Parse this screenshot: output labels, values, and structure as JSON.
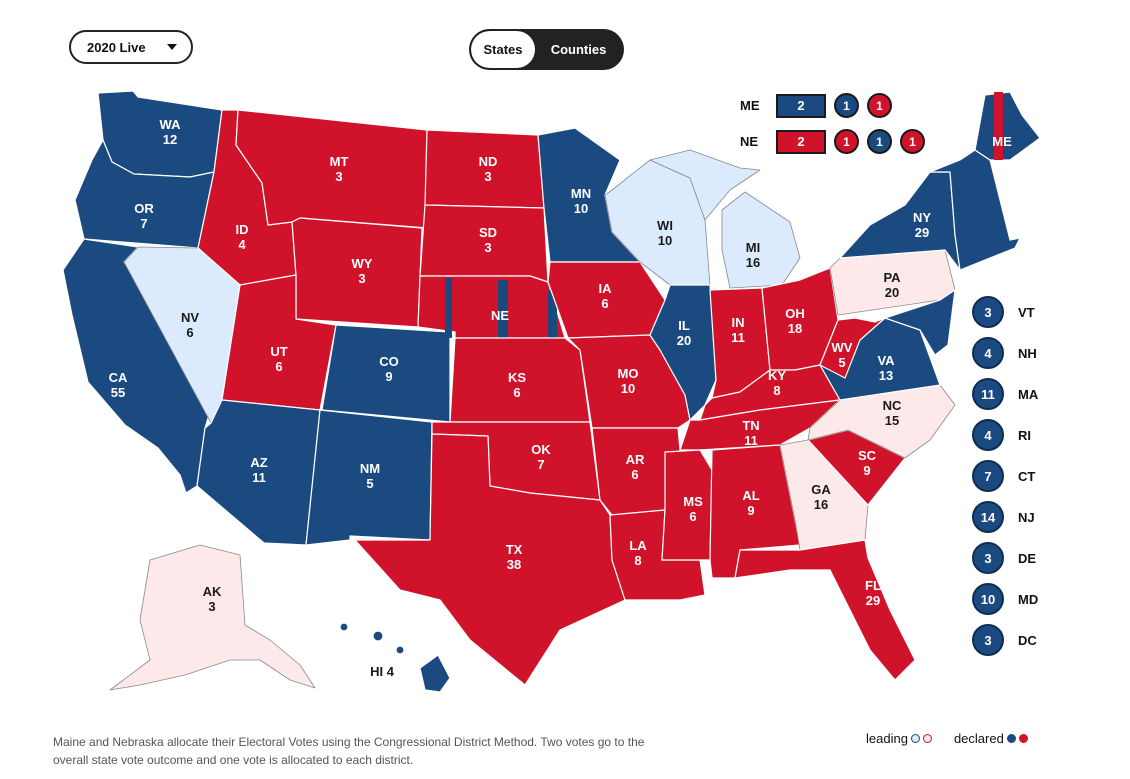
{
  "controls": {
    "year_select": "2020 Live",
    "view_toggle": [
      "States",
      "Counties"
    ]
  },
  "colors": {
    "dem_declared": "#1b4a80",
    "rep_declared": "#d0122a",
    "dem_leading": "#dbeafc",
    "rep_leading": "#fde9ea",
    "border": "#ffffff"
  },
  "states": [
    {
      "abbr": "WA",
      "votes": "12",
      "status": "dem"
    },
    {
      "abbr": "OR",
      "votes": "7",
      "status": "dem"
    },
    {
      "abbr": "CA",
      "votes": "55",
      "status": "dem"
    },
    {
      "abbr": "NV",
      "votes": "6",
      "status": "dem-leading"
    },
    {
      "abbr": "ID",
      "votes": "4",
      "status": "rep"
    },
    {
      "abbr": "MT",
      "votes": "3",
      "status": "rep"
    },
    {
      "abbr": "WY",
      "votes": "3",
      "status": "rep"
    },
    {
      "abbr": "UT",
      "votes": "6",
      "status": "rep"
    },
    {
      "abbr": "AZ",
      "votes": "11",
      "status": "dem"
    },
    {
      "abbr": "CO",
      "votes": "9",
      "status": "dem"
    },
    {
      "abbr": "NM",
      "votes": "5",
      "status": "dem"
    },
    {
      "abbr": "ND",
      "votes": "3",
      "status": "rep"
    },
    {
      "abbr": "SD",
      "votes": "3",
      "status": "rep"
    },
    {
      "abbr": "NE",
      "votes": "",
      "status": "rep"
    },
    {
      "abbr": "KS",
      "votes": "6",
      "status": "rep"
    },
    {
      "abbr": "OK",
      "votes": "7",
      "status": "rep"
    },
    {
      "abbr": "TX",
      "votes": "38",
      "status": "rep"
    },
    {
      "abbr": "MN",
      "votes": "10",
      "status": "dem"
    },
    {
      "abbr": "IA",
      "votes": "6",
      "status": "rep"
    },
    {
      "abbr": "MO",
      "votes": "10",
      "status": "rep"
    },
    {
      "abbr": "AR",
      "votes": "6",
      "status": "rep"
    },
    {
      "abbr": "LA",
      "votes": "8",
      "status": "rep"
    },
    {
      "abbr": "WI",
      "votes": "10",
      "status": "dem-leading"
    },
    {
      "abbr": "IL",
      "votes": "20",
      "status": "dem"
    },
    {
      "abbr": "MI",
      "votes": "16",
      "status": "dem-leading"
    },
    {
      "abbr": "IN",
      "votes": "11",
      "status": "rep"
    },
    {
      "abbr": "OH",
      "votes": "18",
      "status": "rep"
    },
    {
      "abbr": "KY",
      "votes": "8",
      "status": "rep"
    },
    {
      "abbr": "TN",
      "votes": "11",
      "status": "rep"
    },
    {
      "abbr": "MS",
      "votes": "6",
      "status": "rep"
    },
    {
      "abbr": "AL",
      "votes": "9",
      "status": "rep"
    },
    {
      "abbr": "GA",
      "votes": "16",
      "status": "rep-leading"
    },
    {
      "abbr": "FL",
      "votes": "29",
      "status": "rep"
    },
    {
      "abbr": "SC",
      "votes": "9",
      "status": "rep"
    },
    {
      "abbr": "NC",
      "votes": "15",
      "status": "rep-leading"
    },
    {
      "abbr": "VA",
      "votes": "13",
      "status": "dem"
    },
    {
      "abbr": "WV",
      "votes": "5",
      "status": "rep"
    },
    {
      "abbr": "PA",
      "votes": "20",
      "status": "rep-leading"
    },
    {
      "abbr": "NY",
      "votes": "29",
      "status": "dem"
    },
    {
      "abbr": "ME",
      "votes": "",
      "status": "dem"
    },
    {
      "abbr": "AK",
      "votes": "3",
      "status": "rep-leading"
    },
    {
      "abbr": "HI",
      "votes": "4",
      "status": "dem"
    }
  ],
  "split_states": [
    {
      "abbr": "ME",
      "total": "2",
      "total_party": "dem",
      "districts": [
        {
          "votes": "1",
          "party": "dem"
        },
        {
          "votes": "1",
          "party": "rep"
        }
      ]
    },
    {
      "abbr": "NE",
      "total": "2",
      "total_party": "rep",
      "districts": [
        {
          "votes": "1",
          "party": "rep"
        },
        {
          "votes": "1",
          "party": "dem"
        },
        {
          "votes": "1",
          "party": "rep"
        }
      ]
    }
  ],
  "small_states": [
    {
      "abbr": "VT",
      "votes": "3"
    },
    {
      "abbr": "NH",
      "votes": "4"
    },
    {
      "abbr": "MA",
      "votes": "11"
    },
    {
      "abbr": "RI",
      "votes": "4"
    },
    {
      "abbr": "CT",
      "votes": "7"
    },
    {
      "abbr": "NJ",
      "votes": "14"
    },
    {
      "abbr": "DE",
      "votes": "3"
    },
    {
      "abbr": "MD",
      "votes": "10"
    },
    {
      "abbr": "DC",
      "votes": "3"
    }
  ],
  "footnote": "Maine and Nebraska allocate their Electoral Votes using the Congressional District Method. Two votes go to the overall state vote outcome and one vote is allocated to each district.",
  "legend": {
    "leading": "leading",
    "declared": "declared"
  }
}
